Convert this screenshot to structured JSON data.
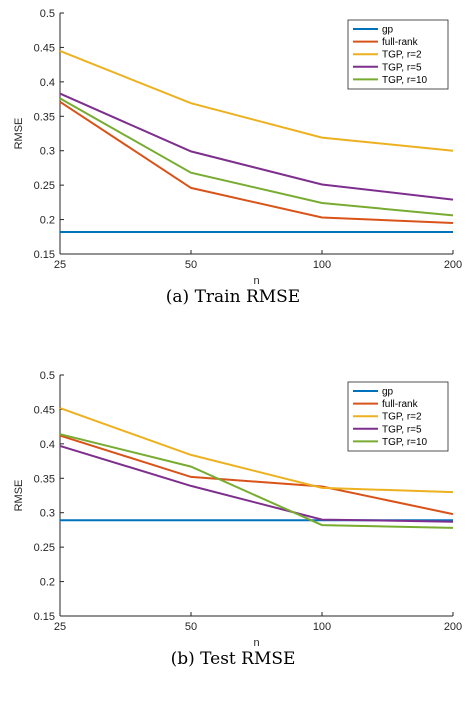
{
  "chart_data": [
    {
      "type": "line",
      "caption": "(a) Train RMSE",
      "xlabel": "n",
      "ylabel": "RMSE",
      "x": [
        25,
        50,
        100,
        200
      ],
      "x_scale": "log",
      "xticks": [
        "25",
        "50",
        "100",
        "200"
      ],
      "ylim": [
        0.15,
        0.5
      ],
      "yticks": [
        "0.15",
        "0.2",
        "0.25",
        "0.3",
        "0.35",
        "0.4",
        "0.45",
        "0.5"
      ],
      "grid": false,
      "legend_position": "top-right",
      "series": [
        {
          "name": "gp",
          "color": "#0072BD",
          "values": [
            0.182,
            0.182,
            0.182,
            0.182
          ]
        },
        {
          "name": "full-rank",
          "color": "#D95319",
          "values": [
            0.371,
            0.246,
            0.203,
            0.195
          ]
        },
        {
          "name": "TGP, r=2",
          "color": "#EDB120",
          "values": [
            0.445,
            0.369,
            0.319,
            0.3
          ]
        },
        {
          "name": "TGP, r=5",
          "color": "#7E2F8E",
          "values": [
            0.383,
            0.299,
            0.251,
            0.229
          ]
        },
        {
          "name": "TGP, r=10",
          "color": "#77AC30",
          "values": [
            0.376,
            0.268,
            0.224,
            0.206
          ]
        }
      ]
    },
    {
      "type": "line",
      "caption": "(b) Test RMSE",
      "xlabel": "n",
      "ylabel": "RMSE",
      "x": [
        25,
        50,
        100,
        200
      ],
      "x_scale": "log",
      "xticks": [
        "25",
        "50",
        "100",
        "200"
      ],
      "ylim": [
        0.15,
        0.5
      ],
      "yticks": [
        "0.15",
        "0.2",
        "0.25",
        "0.3",
        "0.35",
        "0.4",
        "0.45",
        "0.5"
      ],
      "grid": false,
      "legend_position": "top-right",
      "series": [
        {
          "name": "gp",
          "color": "#0072BD",
          "values": [
            0.289,
            0.289,
            0.289,
            0.289
          ]
        },
        {
          "name": "full-rank",
          "color": "#D95319",
          "values": [
            0.412,
            0.352,
            0.338,
            0.298
          ]
        },
        {
          "name": "TGP, r=2",
          "color": "#EDB120",
          "values": [
            0.452,
            0.384,
            0.336,
            0.33
          ]
        },
        {
          "name": "TGP, r=5",
          "color": "#7E2F8E",
          "values": [
            0.397,
            0.339,
            0.29,
            0.287
          ]
        },
        {
          "name": "TGP, r=10",
          "color": "#77AC30",
          "values": [
            0.414,
            0.367,
            0.282,
            0.278
          ]
        }
      ]
    }
  ]
}
